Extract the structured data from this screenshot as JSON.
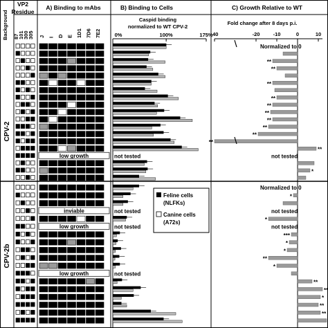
{
  "headers": {
    "vp2_residue": "VP2\nResidue",
    "background": "Background",
    "panel_a": "A) Binding to mAbs",
    "panel_b": "B) Binding to Cells",
    "panel_c": "C) Growth Relative to WT",
    "panel_b_sub": "Caspid binding\nnormalized to WT CPV-2",
    "panel_c_sub": "Fold change after 8 days p.i."
  },
  "residues": [
    "87",
    "101",
    "300",
    "305"
  ],
  "antibodies": [
    "J",
    "I",
    "D",
    "E",
    "1D1",
    "7D6",
    "7E2"
  ],
  "backgrounds": [
    "CPV-2",
    "CPV-2b"
  ],
  "legend": {
    "feline": "Feline cells\n(NLFKs)",
    "canine": "Canine cells\n(A72s)"
  },
  "chart_data": [
    {
      "type": "bar",
      "title": "B) Binding to Cells",
      "xlabel": "Caspid binding normalized to WT CPV-2",
      "xticks": [
        "0%",
        "100%",
        "175%"
      ],
      "xlim": [
        0,
        175
      ],
      "notes": [
        "low growth",
        "not tested",
        "inviable",
        "not tested",
        "low growth",
        "not tested",
        "low growth",
        "not tested"
      ],
      "series": [
        {
          "name": "Feline cells (NLFKs)",
          "color": "#000000",
          "values": [
            100,
            70,
            66,
            63,
            85,
            72,
            60,
            103,
            78,
            96,
            126,
            89,
            95,
            108,
            129,
            106,
            64,
            65,
            49,
            49,
            33,
            28,
            31,
            26,
            29,
            13,
            9,
            15,
            12,
            13,
            15,
            17,
            52,
            39,
            16,
            71,
            95
          ]
        },
        {
          "name": "Canine cells (A72s)",
          "color": "#b8b8b8",
          "values": [
            100,
            67,
            98,
            75,
            98,
            72,
            83,
            123,
            84,
            82,
            149,
            73,
            76,
            115,
            160,
            120,
            59,
            62,
            80,
            38,
            19,
            19,
            32,
            24,
            23,
            7,
            6,
            5,
            4,
            5,
            8,
            8,
            38,
            16,
            26,
            118,
            130
          ]
        }
      ]
    },
    {
      "type": "bar",
      "title": "C) Growth Relative to WT",
      "xlabel": "Fold change after 8 days p.i.",
      "xticks": [
        "-40",
        "-20",
        "-10",
        "0",
        "10"
      ],
      "xlim": [
        -40,
        12
      ],
      "annotations": [
        "Normalized to 0",
        "not tested",
        "Normalized to 0",
        "not tested",
        "not tested"
      ],
      "values": [
        -3,
        -7,
        -12,
        -10,
        -6,
        -12,
        -11,
        -10,
        -12,
        -13,
        -12,
        -14,
        -19,
        -40,
        9,
        7,
        8,
        6,
        4,
        -12,
        -2,
        -7,
        -4,
        -14,
        -5,
        -3,
        -4,
        -5,
        -14,
        -10,
        -3,
        7,
        12,
        11,
        10,
        11,
        14
      ],
      "significance": [
        "",
        "",
        "**",
        "**",
        "",
        "**",
        "",
        "**",
        "**",
        "**",
        "**",
        "**",
        "**",
        "**",
        "**",
        "*",
        "",
        "*",
        "",
        "**",
        "*",
        "",
        "**",
        "*",
        "*",
        "***",
        "*",
        "*",
        "**",
        "*",
        "",
        "**",
        "**",
        "*",
        "**",
        "**",
        "**"
      ]
    }
  ]
}
